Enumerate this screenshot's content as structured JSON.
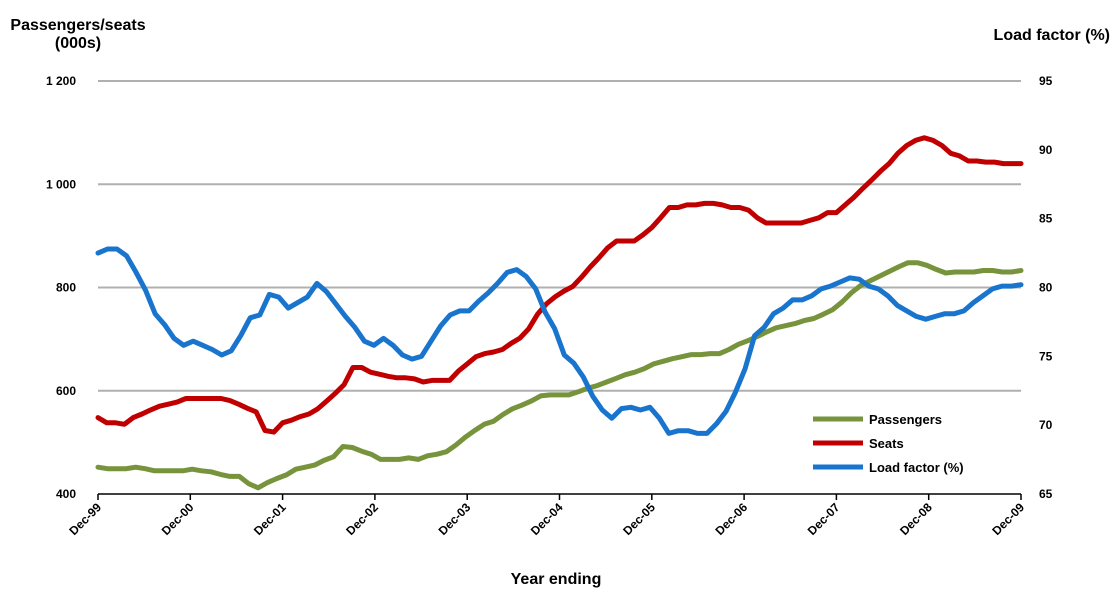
{
  "chart_data": {
    "type": "line",
    "ylabel_left": [
      "Passengers/seats",
      "(000s)"
    ],
    "ylabel_right": "Load  factor (%)",
    "xlabel": "Year ending",
    "ylim_left": [
      400,
      1200
    ],
    "yticks_left": [
      "400",
      "600",
      "800",
      "1 000",
      "1 200"
    ],
    "ylim_right": [
      65,
      95
    ],
    "yticks_right": [
      "65",
      "70",
      "75",
      "80",
      "85",
      "90",
      "95"
    ],
    "xticks": [
      "Dec-99",
      "Dec-00",
      "Dec-01",
      "Dec-02",
      "Dec-03",
      "Dec-04",
      "Dec-05",
      "Dec-06",
      "Dec-07",
      "Dec-08",
      "Dec-09"
    ],
    "grid": true,
    "legend_position": "bottom-right",
    "series": [
      {
        "name": "Passengers",
        "axis": "left",
        "color": "#77933C",
        "values": [
          452,
          449,
          449,
          449,
          452,
          449,
          445,
          445,
          445,
          445,
          448,
          445,
          443,
          438,
          434,
          434,
          420,
          412,
          422,
          430,
          437,
          448,
          452,
          456,
          465,
          472,
          492,
          490,
          483,
          477,
          467,
          467,
          467,
          470,
          467,
          474,
          477,
          482,
          495,
          510,
          523,
          535,
          541,
          554,
          565,
          572,
          580,
          590,
          592,
          592,
          592,
          598,
          605,
          610,
          617,
          624,
          631,
          636,
          643,
          652,
          657,
          662,
          666,
          670,
          670,
          672,
          672,
          680,
          690,
          697,
          705,
          714,
          722,
          726,
          730,
          736,
          740,
          748,
          757,
          772,
          790,
          804,
          813,
          822,
          831,
          840,
          848,
          848,
          843,
          835,
          828,
          830,
          830,
          830,
          833,
          833,
          830,
          830,
          833
        ]
      },
      {
        "name": "Seats",
        "axis": "left",
        "color": "#C00000",
        "values": [
          548,
          538,
          538,
          535,
          548,
          555,
          563,
          570,
          574,
          578,
          585,
          585,
          585,
          585,
          585,
          581,
          574,
          566,
          559,
          523,
          520,
          538,
          543,
          550,
          555,
          565,
          580,
          595,
          612,
          645,
          645,
          636,
          632,
          628,
          625,
          625,
          623,
          617,
          620,
          620,
          620,
          638,
          652,
          666,
          672,
          675,
          680,
          692,
          702,
          720,
          748,
          768,
          782,
          793,
          802,
          820,
          840,
          858,
          877,
          890,
          890,
          890,
          902,
          916,
          935,
          955,
          955,
          960,
          960,
          963,
          963,
          960,
          955,
          955,
          950,
          935,
          925,
          925,
          925,
          925,
          925,
          930,
          935,
          945,
          945,
          960,
          975,
          992,
          1008,
          1025,
          1040,
          1060,
          1075,
          1085,
          1090,
          1085,
          1075,
          1060,
          1055,
          1045,
          1045,
          1043,
          1043,
          1040,
          1040,
          1040
        ]
      },
      {
        "name": "Load factor (%)",
        "axis": "right",
        "color": "#1874CD",
        "values": [
          82.5,
          82.8,
          82.8,
          82.3,
          81.1,
          79.8,
          78.1,
          77.3,
          76.3,
          75.8,
          76.1,
          75.8,
          75.5,
          75.1,
          75.4,
          76.5,
          77.8,
          78,
          79.5,
          79.3,
          78.5,
          78.9,
          79.3,
          80.3,
          79.7,
          78.8,
          77.9,
          77.1,
          76.1,
          75.8,
          76.3,
          75.8,
          75.1,
          74.8,
          75,
          76.1,
          77.2,
          78,
          78.3,
          78.3,
          79,
          79.6,
          80.3,
          81.1,
          81.3,
          80.8,
          79.9,
          78.2,
          77,
          75.1,
          74.5,
          73.5,
          72.1,
          71.1,
          70.5,
          71.2,
          71.3,
          71.1,
          71.3,
          70.5,
          69.4,
          69.6,
          69.6,
          69.4,
          69.4,
          70.1,
          71,
          72.4,
          74.1,
          76.5,
          77.1,
          78.1,
          78.5,
          79.1,
          79.1,
          79.4,
          79.9,
          80.1,
          80.4,
          80.7,
          80.6,
          80.1,
          79.9,
          79.4,
          78.7,
          78.3,
          77.9,
          77.7,
          77.9,
          78.1,
          78.1,
          78.3,
          78.9,
          79.4,
          79.9,
          80.1,
          80.1,
          80.2
        ]
      }
    ]
  }
}
